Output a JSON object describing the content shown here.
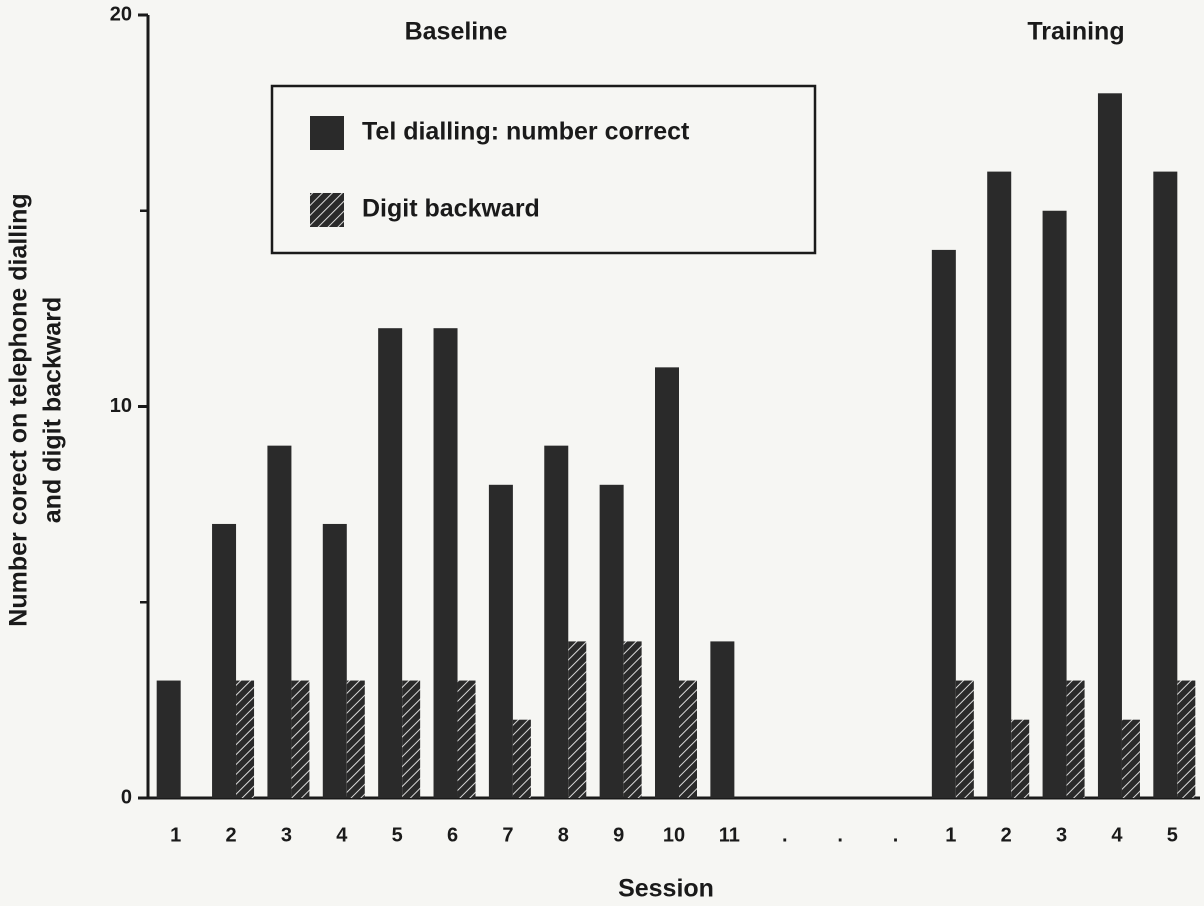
{
  "chart_data": {
    "type": "bar",
    "y_label": [
      "Number corect on telephone dialling",
      "and digit backward"
    ],
    "x_label": "Session",
    "annotations": [
      "Baseline",
      "Training"
    ],
    "categories": [
      "1",
      "2",
      "3",
      "4",
      "5",
      "6",
      "7",
      "8",
      "9",
      "10",
      "11",
      ".",
      ".",
      ".",
      "1",
      "2",
      "3",
      "4",
      "5"
    ],
    "series": [
      {
        "name": "Tel dialling: number correct",
        "color": "#2a2a2a",
        "pattern": "solid",
        "values": [
          3,
          7,
          9,
          7,
          12,
          12,
          8,
          9,
          8,
          11,
          4,
          null,
          null,
          null,
          14,
          16,
          15,
          18,
          16
        ]
      },
      {
        "name": "Digit backward",
        "color": "#2a2a2a",
        "pattern": "hatch",
        "values": [
          null,
          3,
          3,
          3,
          3,
          3,
          2,
          4,
          4,
          3,
          null,
          null,
          null,
          null,
          3,
          2,
          3,
          2,
          3
        ]
      }
    ],
    "ylim": [
      0,
      20
    ],
    "yticks": [
      0,
      10,
      20
    ],
    "yminor_ticks": [
      5,
      15
    ],
    "grid": false
  }
}
